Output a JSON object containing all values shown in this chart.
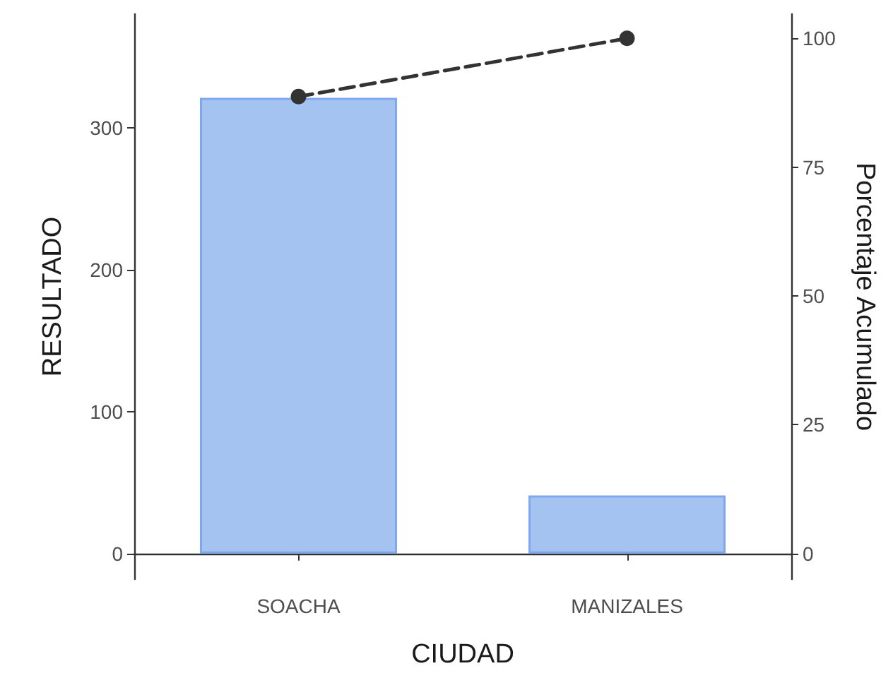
{
  "chart_data": {
    "type": "bar",
    "xlabel": "CIUDAD",
    "ylabel": "RESULTADO",
    "y2label": "Porcentaje Acumulado",
    "categories": [
      "SOACHA",
      "MANIZALES"
    ],
    "series": [
      {
        "color": "#a4c3f0",
        "values": [
          321,
          41
        ]
      },
      {
        "type": "line",
        "axis": "y2",
        "color": "#333333",
        "values": [
          88.7,
          100
        ],
        "marker": "circle",
        "line_style": "dashed"
      }
    ],
    "ylim": [
      -18,
      380
    ],
    "yticks": [
      0,
      100,
      200,
      300
    ],
    "y2lim": [
      -4.96,
      104.7
    ],
    "y2ticks": [
      0,
      25,
      50,
      75,
      100
    ],
    "grid": false
  }
}
